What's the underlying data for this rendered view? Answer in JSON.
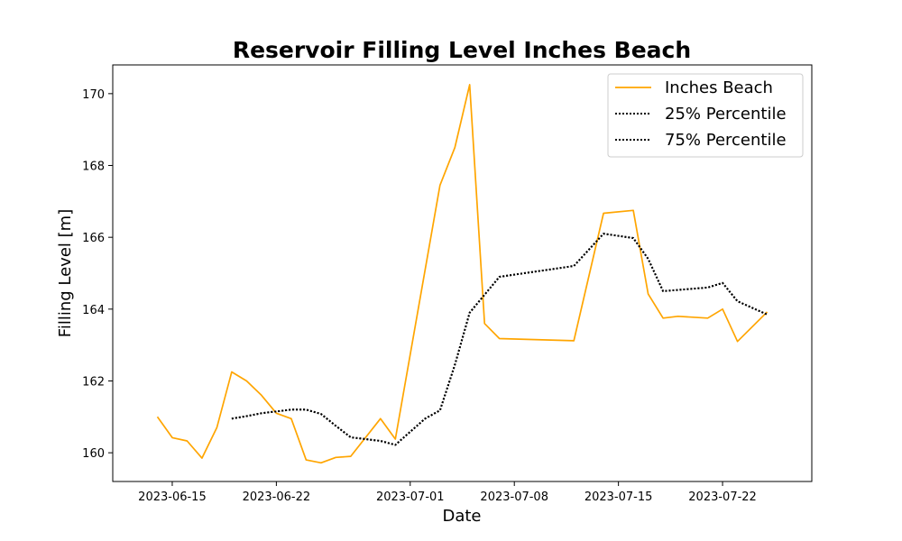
{
  "chart_data": {
    "type": "line",
    "title": "Reservoir Filling Level Inches Beach",
    "xlabel": "Date",
    "ylabel": "Filling Level [m]",
    "xlim": [
      "2023-06-11",
      "2023-07-28"
    ],
    "ylim": [
      159.2,
      170.8
    ],
    "x_ticks": [
      "2023-06-15",
      "2023-06-22",
      "2023-07-01",
      "2023-07-08",
      "2023-07-15",
      "2023-07-22"
    ],
    "y_ticks": [
      160,
      162,
      164,
      166,
      168,
      170
    ],
    "grid": false,
    "legend_position": "top-right",
    "series": [
      {
        "name": "Inches Beach",
        "color": "#FFA500",
        "style": "solid",
        "x": [
          "2023-06-14",
          "2023-06-15",
          "2023-06-16",
          "2023-06-17",
          "2023-06-18",
          "2023-06-19",
          "2023-06-20",
          "2023-06-21",
          "2023-06-22",
          "2023-06-23",
          "2023-06-24",
          "2023-06-25",
          "2023-06-26",
          "2023-06-27",
          "2023-06-29",
          "2023-06-30",
          "2023-07-03",
          "2023-07-04",
          "2023-07-05",
          "2023-07-06",
          "2023-07-07",
          "2023-07-12",
          "2023-07-14",
          "2023-07-16",
          "2023-07-17",
          "2023-07-18",
          "2023-07-19",
          "2023-07-21",
          "2023-07-22",
          "2023-07-23",
          "2023-07-25"
        ],
        "values": [
          161.0,
          160.42,
          160.33,
          159.85,
          160.7,
          162.25,
          162.0,
          161.6,
          161.1,
          160.95,
          159.8,
          159.72,
          159.87,
          159.9,
          160.95,
          160.38,
          167.45,
          168.5,
          170.25,
          163.6,
          163.18,
          163.12,
          166.67,
          166.75,
          164.42,
          163.75,
          163.8,
          163.75,
          164.0,
          163.1,
          163.92
        ]
      },
      {
        "name": "25% Percentile",
        "color": "#000000",
        "style": "dotted",
        "x": [
          "2023-06-19",
          "2023-06-20",
          "2023-06-21",
          "2023-06-22",
          "2023-06-23",
          "2023-06-24",
          "2023-06-25",
          "2023-06-26",
          "2023-06-27",
          "2023-06-29",
          "2023-06-30",
          "2023-07-02",
          "2023-07-03",
          "2023-07-04",
          "2023-07-05",
          "2023-07-07",
          "2023-07-12",
          "2023-07-14",
          "2023-07-16",
          "2023-07-17",
          "2023-07-18",
          "2023-07-21",
          "2023-07-22",
          "2023-07-23",
          "2023-07-25"
        ],
        "values": [
          160.95,
          161.02,
          161.1,
          161.15,
          161.2,
          161.2,
          161.08,
          160.75,
          160.43,
          160.33,
          160.22,
          160.95,
          161.18,
          162.45,
          163.9,
          164.9,
          165.2,
          166.1,
          165.98,
          165.4,
          164.5,
          164.6,
          164.73,
          164.22,
          163.85
        ]
      },
      {
        "name": "75% Percentile",
        "color": "#000000",
        "style": "dotted",
        "x": [
          "2023-06-19",
          "2023-06-20",
          "2023-06-21",
          "2023-06-22",
          "2023-06-23",
          "2023-06-24",
          "2023-06-25",
          "2023-06-26",
          "2023-06-27",
          "2023-06-29",
          "2023-06-30",
          "2023-07-02",
          "2023-07-03",
          "2023-07-04",
          "2023-07-05",
          "2023-07-07",
          "2023-07-12",
          "2023-07-14",
          "2023-07-16",
          "2023-07-17",
          "2023-07-18",
          "2023-07-21",
          "2023-07-22",
          "2023-07-23",
          "2023-07-25"
        ],
        "values": [
          160.95,
          161.02,
          161.1,
          161.15,
          161.2,
          161.2,
          161.08,
          160.75,
          160.43,
          160.33,
          160.22,
          160.95,
          161.18,
          162.45,
          163.9,
          164.9,
          165.2,
          166.1,
          165.98,
          165.4,
          164.5,
          164.6,
          164.73,
          164.22,
          163.85
        ]
      }
    ]
  }
}
